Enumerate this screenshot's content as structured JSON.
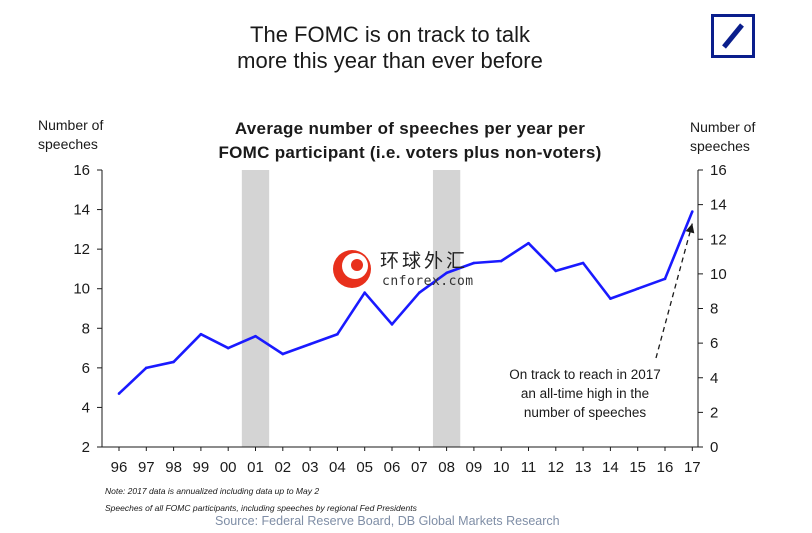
{
  "headline": [
    "The FOMC is on track to talk",
    "more this year than ever before"
  ],
  "logo": {
    "icon": "deutsche-bank-logo-icon",
    "color": "#0a1e8c"
  },
  "chart_data": {
    "type": "line",
    "title": [
      "Average number of speeches per year per",
      "FOMC participant (i.e. voters plus non-voters)"
    ],
    "ylabel_left": [
      "Number of",
      "speeches"
    ],
    "ylabel_right": [
      "Number of",
      "speeches"
    ],
    "categories": [
      "96",
      "97",
      "98",
      "99",
      "00",
      "01",
      "02",
      "03",
      "04",
      "05",
      "06",
      "07",
      "08",
      "09",
      "10",
      "11",
      "12",
      "13",
      "14",
      "15",
      "16",
      "17"
    ],
    "series": [
      {
        "values": [
          4.7,
          6.0,
          6.3,
          7.7,
          7.0,
          7.6,
          6.7,
          7.2,
          7.7,
          9.8,
          8.2,
          9.8,
          10.8,
          11.3,
          11.4,
          12.3,
          10.9,
          11.3,
          9.5,
          10.0,
          10.5,
          13.9
        ],
        "color": "#1a1aff"
      }
    ],
    "ylim_left": [
      2,
      16
    ],
    "yticks_left": [
      2,
      4,
      6,
      8,
      10,
      12,
      14,
      16
    ],
    "ylim_right": [
      0,
      16
    ],
    "yticks_right": [
      0,
      2,
      4,
      6,
      8,
      10,
      12,
      14,
      16
    ],
    "shaded_periods": [
      {
        "start": "00",
        "end": "01",
        "color": "#d4d4d4"
      },
      {
        "start": "07",
        "end": "08",
        "color": "#d4d4d4"
      }
    ],
    "annotation": {
      "text": [
        "On track to reach in 2017",
        "an all-time high in the",
        "number of speeches"
      ],
      "points_to": "17"
    },
    "grid": false
  },
  "notes": [
    "Note: 2017 data is annualized including data up to May 2",
    "Speeches of all FOMC participants, including speeches by regional Fed Presidents"
  ],
  "source": "Source: Federal Reserve Board, DB Global Markets Research",
  "watermark": {
    "cn": "环球外汇",
    "en": "cnforex.com"
  }
}
